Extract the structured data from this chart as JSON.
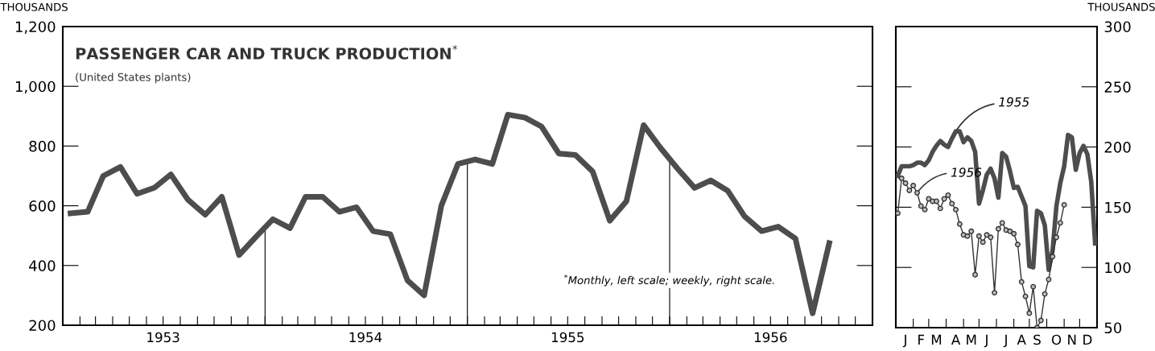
{
  "chart_data": [
    {
      "type": "line",
      "title": "PASSENGER CAR AND TRUCK PRODUCTION$^{*}$",
      "subtitle": "(United States plants)",
      "ylabel": "THOUSANDS",
      "annotations": [
        "$^{*}$Monthly, left scale; weekly, right scale."
      ],
      "x": [
        "1953-01-15",
        "1953-02-15",
        "1953-03-15",
        "1953-04-15",
        "1953-05-15",
        "1953-06-15",
        "1953-07-15",
        "1953-08-15",
        "1953-09-15",
        "1953-10-15",
        "1953-11-15",
        "1953-12-15",
        "1954-01-15",
        "1954-02-15",
        "1954-03-15",
        "1954-04-15",
        "1954-05-15",
        "1954-06-15",
        "1954-07-15",
        "1954-08-15",
        "1954-09-15",
        "1954-10-15",
        "1954-11-15",
        "1954-12-15",
        "1955-01-15",
        "1955-02-15",
        "1955-03-15",
        "1955-04-15",
        "1955-05-15",
        "1955-06-15",
        "1955-07-15",
        "1955-08-15",
        "1955-09-15",
        "1955-10-15",
        "1955-11-15",
        "1955-12-15",
        "1956-01-15",
        "1956-02-15",
        "1956-03-15",
        "1956-04-15",
        "1956-05-15",
        "1956-06-15",
        "1956-07-15",
        "1956-08-15",
        "1956-09-15",
        "1956-10-15"
      ],
      "series": [
        {
          "color": "#4d4d4d",
          "values": [
            575,
            580,
            700,
            730,
            640,
            660,
            705,
            620,
            570,
            630,
            435,
            495,
            555,
            525,
            630,
            630,
            580,
            595,
            515,
            505,
            350,
            300,
            600,
            740,
            755,
            740,
            905,
            895,
            865,
            775,
            770,
            715,
            550,
            615,
            870,
            795,
            725,
            660,
            685,
            650,
            565,
            515,
            530,
            490,
            240,
            475
          ]
        }
      ],
      "xlim": [
        "1953-01",
        "1957-01"
      ],
      "xticks": [
        {
          "value": "1953-02",
          "label": null
        },
        {
          "value": "1953-03",
          "label": null
        },
        {
          "value": "1953-04",
          "label": null
        },
        {
          "value": "1953-05",
          "label": null
        },
        {
          "value": "1953-06",
          "label": null
        },
        {
          "value": "1953-07",
          "label": "1953"
        },
        {
          "value": "1953-08",
          "label": null
        },
        {
          "value": "1953-09",
          "label": null
        },
        {
          "value": "1953-10",
          "label": null
        },
        {
          "value": "1953-11",
          "label": null
        },
        {
          "value": "1953-12",
          "label": null
        },
        {
          "value": "1954-01",
          "label": null
        },
        {
          "value": "1954-02",
          "label": null
        },
        {
          "value": "1954-03",
          "label": null
        },
        {
          "value": "1954-04",
          "label": null
        },
        {
          "value": "1954-05",
          "label": null
        },
        {
          "value": "1954-06",
          "label": null
        },
        {
          "value": "1954-07",
          "label": "1954"
        },
        {
          "value": "1954-08",
          "label": null
        },
        {
          "value": "1954-09",
          "label": null
        },
        {
          "value": "1954-10",
          "label": null
        },
        {
          "value": "1954-11",
          "label": null
        },
        {
          "value": "1954-12",
          "label": null
        },
        {
          "value": "1955-01",
          "label": null
        },
        {
          "value": "1955-02",
          "label": null
        },
        {
          "value": "1955-03",
          "label": null
        },
        {
          "value": "1955-04",
          "label": null
        },
        {
          "value": "1955-05",
          "label": null
        },
        {
          "value": "1955-06",
          "label": null
        },
        {
          "value": "1955-07",
          "label": "1955"
        },
        {
          "value": "1955-08",
          "label": null
        },
        {
          "value": "1955-09",
          "label": null
        },
        {
          "value": "1955-10",
          "label": null
        },
        {
          "value": "1955-11",
          "label": null
        },
        {
          "value": "1955-12",
          "label": null
        },
        {
          "value": "1956-01",
          "label": null
        },
        {
          "value": "1956-02",
          "label": null
        },
        {
          "value": "1956-03",
          "label": null
        },
        {
          "value": "1956-04",
          "label": null
        },
        {
          "value": "1956-05",
          "label": null
        },
        {
          "value": "1956-06",
          "label": null
        },
        {
          "value": "1956-07",
          "label": "1956"
        },
        {
          "value": "1956-08",
          "label": null
        },
        {
          "value": "1956-09",
          "label": null
        },
        {
          "value": "1956-10",
          "label": null
        },
        {
          "value": "1956-11",
          "label": null
        },
        {
          "value": "1956-12",
          "label": null
        }
      ],
      "ylim": [
        200,
        1200
      ],
      "yticks": [
        200,
        400,
        600,
        800,
        {
          "value": 1000,
          "label": "1,000"
        },
        {
          "value": 1200,
          "label": "1,200"
        }
      ],
      "ref_lines": [
        {
          "axis": "x",
          "value": "1954-01",
          "color": "#000000"
        },
        {
          "axis": "x",
          "value": "1955-01",
          "color": "#000000"
        },
        {
          "axis": "x",
          "value": "1956-01",
          "color": "#000000"
        }
      ],
      "grid": false,
      "legend": false
    },
    {
      "type": "line",
      "ylabel": "THOUSANDS",
      "categories": [
        null,
        null,
        "J",
        null,
        null,
        null,
        "F",
        null,
        null,
        null,
        "M",
        null,
        null,
        null,
        null,
        "A",
        null,
        null,
        null,
        "M",
        null,
        null,
        null,
        "J",
        null,
        null,
        null,
        null,
        "J",
        null,
        null,
        null,
        "A",
        null,
        null,
        null,
        "S",
        null,
        null,
        null,
        null,
        "O",
        null,
        null,
        null,
        "N",
        null,
        null,
        null,
        "D",
        null,
        null
      ],
      "series": [
        {
          "name": "1955",
          "color": "#4d4d4d",
          "marker": "none",
          "values": [
            176,
            184,
            184,
            184,
            185,
            187,
            187,
            185,
            189,
            196,
            201,
            205,
            202,
            200,
            207,
            213,
            213,
            204,
            208,
            205,
            196,
            153,
            164,
            177,
            182,
            174,
            158,
            195,
            192,
            180,
            166,
            167,
            159,
            151,
            101,
            100,
            147,
            145,
            135,
            98,
            114,
            151,
            170,
            184,
            210,
            208,
            181,
            195,
            201,
            194,
            171,
            120
          ]
        },
        {
          "name": "1956",
          "color": "#333333",
          "marker": "circle",
          "values": [
            145,
            174,
            170,
            164,
            168,
            162,
            151,
            148,
            157,
            155,
            155,
            149,
            157,
            160,
            153,
            148,
            136,
            127,
            126,
            130,
            94,
            126,
            121,
            127,
            125,
            79,
            132,
            137,
            131,
            130,
            128,
            119,
            88,
            76,
            62,
            84,
            50,
            56,
            78,
            90,
            109,
            125,
            137,
            152,
            null,
            null,
            null,
            null,
            null,
            null,
            null,
            null
          ]
        }
      ],
      "ylim": [
        50,
        300
      ],
      "yticks": [
        50,
        100,
        150,
        200,
        250,
        300
      ],
      "grid": false,
      "legend": false
    }
  ]
}
